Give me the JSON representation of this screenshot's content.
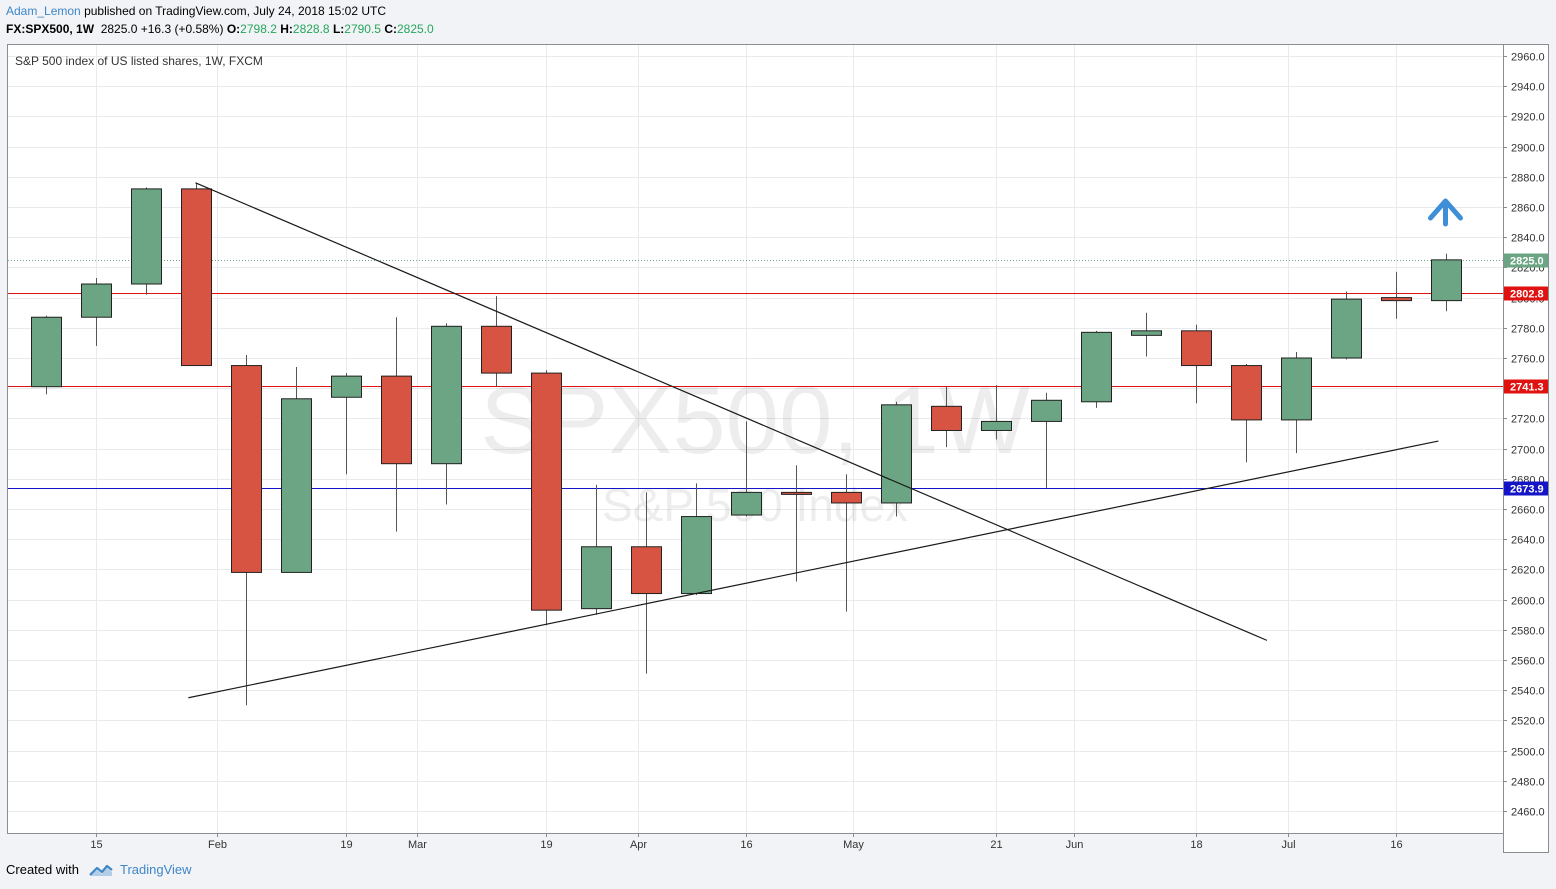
{
  "header": {
    "username": "Adam_Lemon",
    "published_text": "published on TradingView.com, July 24, 2018 15:02 UTC",
    "symbol": "FX:SPX500, 1W",
    "last": "2825.0",
    "change": "+16.3 (+0.58%)",
    "o_label": "O:",
    "o_value": "2798.2",
    "h_label": "H:",
    "h_value": "2828.8",
    "l_label": "L:",
    "l_value": "2790.5",
    "c_label": "C:",
    "c_value": "2825.0"
  },
  "footer": {
    "created_with": "Created with",
    "brand": "TradingView"
  },
  "colors": {
    "up": "#6ba583",
    "down": "#d75442",
    "red_line": "#e0120f",
    "blue_line": "#1515c8",
    "last_price": "#6ba583",
    "arrow": "#3e8ed8",
    "grid": "#e8eaee"
  },
  "icons": {
    "tv_logo": "tradingview-logo-icon",
    "up_arrow": "up-arrow-icon"
  },
  "chart_data": {
    "type": "candlestick",
    "title": "S&P 500 index of US listed shares, 1W, FXCM",
    "watermark_symbol": "SPX500, 1W",
    "watermark_name": "S&P 500 Index",
    "y_range": [
      2448,
      2972
    ],
    "y_ticks": [
      "2960.0",
      "2940.0",
      "2920.0",
      "2900.0",
      "2880.0",
      "2860.0",
      "2840.0",
      "2820.0",
      "2800.0",
      "2780.0",
      "2760.0",
      "2740.0",
      "2720.0",
      "2700.0",
      "2680.0",
      "2660.0",
      "2640.0",
      "2620.0",
      "2600.0",
      "2580.0",
      "2560.0",
      "2540.0",
      "2520.0",
      "2500.0",
      "2480.0",
      "2460.0"
    ],
    "x_ticks": [
      {
        "date": "2018-01-15",
        "label": "15"
      },
      {
        "date": "2018-02-01",
        "label": "Feb"
      },
      {
        "date": "2018-02-19",
        "label": "19"
      },
      {
        "date": "2018-03-01",
        "label": "Mar"
      },
      {
        "date": "2018-03-19",
        "label": "19"
      },
      {
        "date": "2018-04-01",
        "label": "Apr"
      },
      {
        "date": "2018-04-16",
        "label": "16"
      },
      {
        "date": "2018-05-01",
        "label": "May"
      },
      {
        "date": "2018-05-21",
        "label": "21"
      },
      {
        "date": "2018-06-01",
        "label": "Jun"
      },
      {
        "date": "2018-06-18",
        "label": "18"
      },
      {
        "date": "2018-07-01",
        "label": "Jul"
      },
      {
        "date": "2018-07-16",
        "label": "16"
      }
    ],
    "candles": [
      {
        "date": "2018-01-08",
        "o": 2741,
        "h": 2788,
        "l": 2736,
        "c": 2787
      },
      {
        "date": "2018-01-15",
        "o": 2787,
        "h": 2813,
        "l": 2768,
        "c": 2809
      },
      {
        "date": "2018-01-22",
        "o": 2809,
        "h": 2873,
        "l": 2802,
        "c": 2872
      },
      {
        "date": "2018-01-29",
        "o": 2872,
        "h": 2876,
        "l": 2755,
        "c": 2755
      },
      {
        "date": "2018-02-05",
        "o": 2755,
        "h": 2762,
        "l": 2530,
        "c": 2618
      },
      {
        "date": "2018-02-12",
        "o": 2618,
        "h": 2754,
        "l": 2618,
        "c": 2733
      },
      {
        "date": "2018-02-19",
        "o": 2734,
        "h": 2750,
        "l": 2683,
        "c": 2748
      },
      {
        "date": "2018-02-26",
        "o": 2748,
        "h": 2787,
        "l": 2645,
        "c": 2690
      },
      {
        "date": "2018-03-05",
        "o": 2690,
        "h": 2783,
        "l": 2663,
        "c": 2781
      },
      {
        "date": "2018-03-12",
        "o": 2781,
        "h": 2801,
        "l": 2741,
        "c": 2750
      },
      {
        "date": "2018-03-19",
        "o": 2750,
        "h": 2752,
        "l": 2583,
        "c": 2593
      },
      {
        "date": "2018-03-26",
        "o": 2594,
        "h": 2676,
        "l": 2590,
        "c": 2635
      },
      {
        "date": "2018-04-02",
        "o": 2635,
        "h": 2671,
        "l": 2551,
        "c": 2604
      },
      {
        "date": "2018-04-09",
        "o": 2604,
        "h": 2677,
        "l": 2603,
        "c": 2655
      },
      {
        "date": "2018-04-16",
        "o": 2656,
        "h": 2718,
        "l": 2655,
        "c": 2671
      },
      {
        "date": "2018-04-23",
        "o": 2671,
        "h": 2689,
        "l": 2612,
        "c": 2670
      },
      {
        "date": "2018-04-30",
        "o": 2671,
        "h": 2683,
        "l": 2592,
        "c": 2664
      },
      {
        "date": "2018-05-07",
        "o": 2664,
        "h": 2731,
        "l": 2655,
        "c": 2729
      },
      {
        "date": "2018-05-14",
        "o": 2728,
        "h": 2741,
        "l": 2701,
        "c": 2712
      },
      {
        "date": "2018-05-21",
        "o": 2712,
        "h": 2742,
        "l": 2706,
        "c": 2718
      },
      {
        "date": "2018-05-28",
        "o": 2718,
        "h": 2737,
        "l": 2674,
        "c": 2732
      },
      {
        "date": "2018-06-04",
        "o": 2731,
        "h": 2778,
        "l": 2727,
        "c": 2777
      },
      {
        "date": "2018-06-11",
        "o": 2775,
        "h": 2790,
        "l": 2761,
        "c": 2778
      },
      {
        "date": "2018-06-18",
        "o": 2778,
        "h": 2782,
        "l": 2730,
        "c": 2755
      },
      {
        "date": "2018-06-25",
        "o": 2755,
        "h": 2756,
        "l": 2691,
        "c": 2719
      },
      {
        "date": "2018-07-02",
        "o": 2719,
        "h": 2764,
        "l": 2697,
        "c": 2760
      },
      {
        "date": "2018-07-09",
        "o": 2760,
        "h": 2804,
        "l": 2759,
        "c": 2799
      },
      {
        "date": "2018-07-16",
        "o": 2800,
        "h": 2817,
        "l": 2786,
        "c": 2798
      },
      {
        "date": "2018-07-23",
        "o": 2798,
        "h": 2829,
        "l": 2791,
        "c": 2825
      }
    ],
    "horizontal_lines": [
      {
        "value": 2802.8,
        "label": "2802.8",
        "color": "red"
      },
      {
        "value": 2741.3,
        "label": "2741.3",
        "color": "red"
      },
      {
        "value": 2673.9,
        "label": "2673.9",
        "color": "blue"
      }
    ],
    "last_price": {
      "value": 2825.0,
      "label": "2825.0"
    },
    "trendlines": [
      {
        "from": {
          "date": "2018-01-29",
          "value": 2876
        },
        "to": {
          "date": "2018-06-28",
          "value": 2573
        }
      },
      {
        "from": {
          "date": "2018-01-28",
          "value": 2535
        },
        "to": {
          "date": "2018-07-22",
          "value": 2705
        }
      }
    ],
    "arrow_marker": {
      "date": "2018-07-23",
      "value": 2858,
      "direction": "up"
    }
  }
}
